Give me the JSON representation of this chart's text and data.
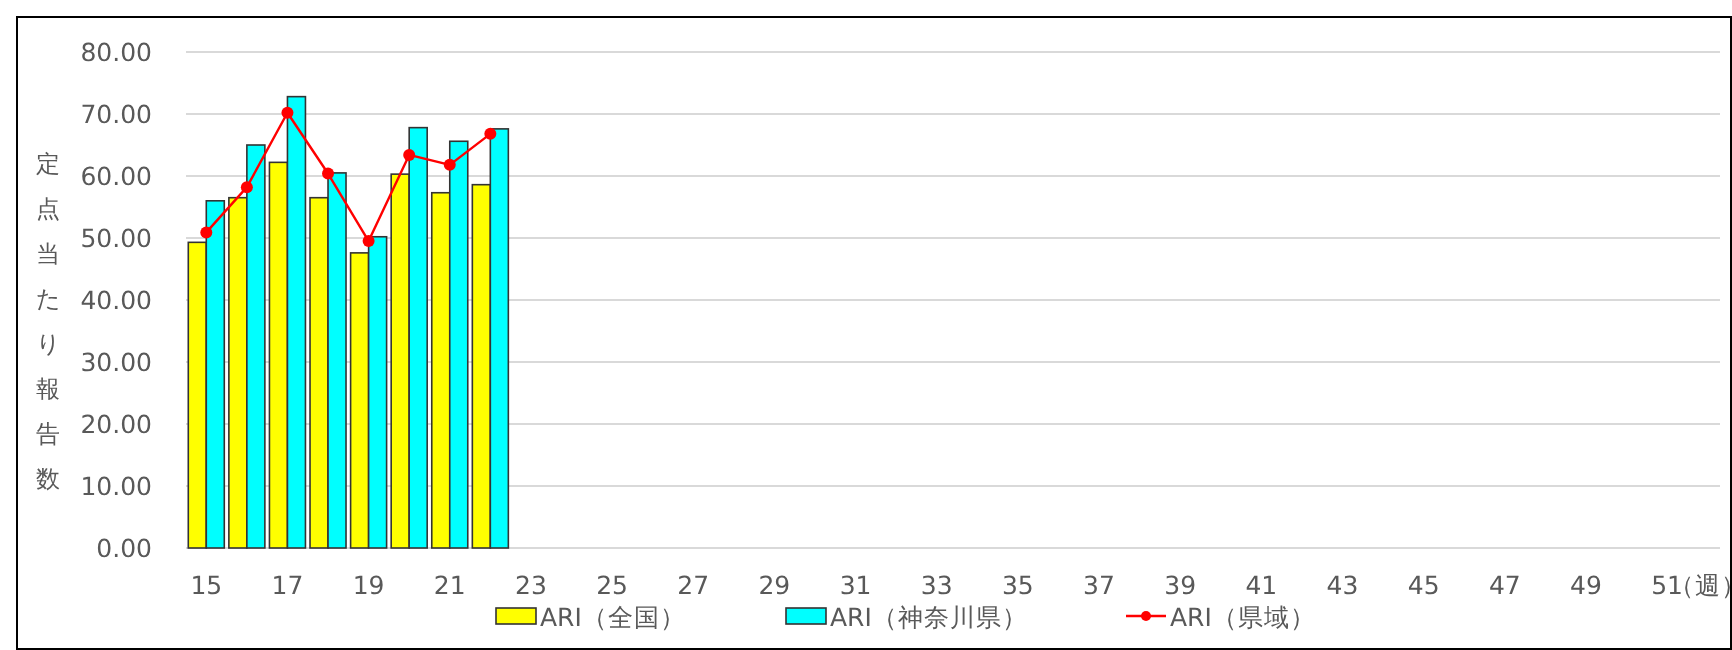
{
  "chart_data": {
    "type": "bar",
    "ylabel": "定点当たり報告数",
    "categories": [
      "15",
      null,
      "17",
      null,
      "19",
      null,
      "21",
      null,
      "23",
      null,
      "25",
      null,
      "27",
      null,
      "29",
      null,
      "31",
      null,
      "33",
      null,
      "35",
      null,
      "37",
      null,
      "39",
      null,
      "41",
      null,
      "43",
      null,
      "45",
      null,
      "47",
      null,
      "49",
      null,
      "51",
      "（週）"
    ],
    "series": [
      {
        "name": "ARI（全国）",
        "color": "#ffff00",
        "values": [
          49.3,
          56.5,
          62.2,
          56.5,
          47.6,
          60.3,
          57.3,
          58.6,
          null,
          null,
          null,
          null,
          null,
          null,
          null,
          null,
          null,
          null,
          null,
          null,
          null,
          null,
          null,
          null,
          null,
          null,
          null,
          null,
          null,
          null,
          null,
          null,
          null,
          null,
          null,
          null,
          null,
          null
        ]
      },
      {
        "name": "ARI（神奈川県）",
        "color": "#00ffff",
        "values": [
          56.0,
          65.0,
          72.8,
          60.5,
          50.2,
          67.8,
          65.6,
          67.6,
          null,
          null,
          null,
          null,
          null,
          null,
          null,
          null,
          null,
          null,
          null,
          null,
          null,
          null,
          null,
          null,
          null,
          null,
          null,
          null,
          null,
          null,
          null,
          null,
          null,
          null,
          null,
          null,
          null,
          null
        ]
      },
      {
        "name": "ARI（県域）",
        "type": "line",
        "color": "#ff0000",
        "marker": "circle",
        "values": [
          50.9,
          58.2,
          70.2,
          60.4,
          49.5,
          63.4,
          61.8,
          66.8,
          null,
          null,
          null,
          null,
          null,
          null,
          null,
          null,
          null,
          null,
          null,
          null,
          null,
          null,
          null,
          null,
          null,
          null,
          null,
          null,
          null,
          null,
          null,
          null,
          null,
          null,
          null,
          null,
          null,
          null
        ]
      }
    ],
    "ylim": [
      0,
      80
    ],
    "yticks": [
      {
        "value": 0,
        "label": "0.00"
      },
      {
        "value": 10,
        "label": "10.00"
      },
      {
        "value": 20,
        "label": "20.00"
      },
      {
        "value": 30,
        "label": "30.00"
      },
      {
        "value": 40,
        "label": "40.00"
      },
      {
        "value": 50,
        "label": "50.00"
      },
      {
        "value": 60,
        "label": "60.00"
      },
      {
        "value": 70,
        "label": "70.00"
      },
      {
        "value": 80,
        "label": "80.00"
      }
    ],
    "grid": "y",
    "legend": "bottom"
  }
}
